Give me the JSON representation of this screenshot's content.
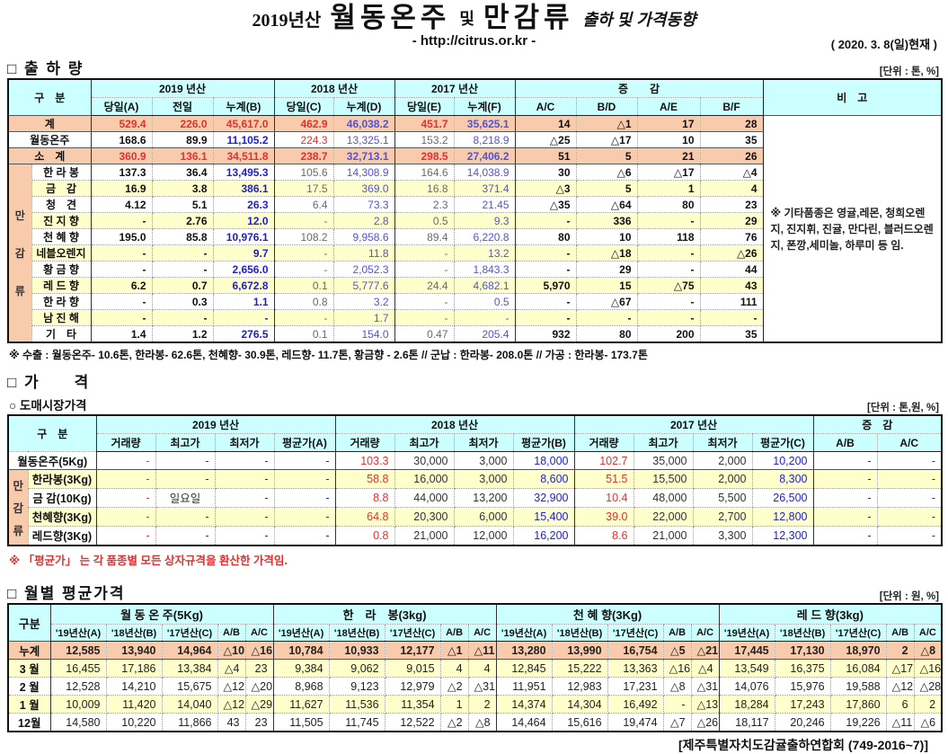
{
  "title": {
    "year_label": "2019년산",
    "main_left": "월동온주",
    "main_mid": "및",
    "main_right": "만감류",
    "suffix": "출하 및 가격동향",
    "url": "- http://citrus.or.kr -",
    "date": "( 2020. 3. 8(일)현재 )"
  },
  "shipment": {
    "section_title": "□ 출 하 량",
    "unit": "[단위 : 톤, %]",
    "corner_label": "구　분",
    "remark_label": "비　고",
    "groups": [
      {
        "label": "2019 년산",
        "cols": [
          "당일(A)",
          "전일",
          "누계(B)"
        ]
      },
      {
        "label": "2018 년산",
        "cols": [
          "당일(C)",
          "누계(D)"
        ]
      },
      {
        "label": "2017 년산",
        "cols": [
          "당일(E)",
          "누계(F)"
        ]
      },
      {
        "label": "증　　감",
        "cols": [
          "A/C",
          "B/D",
          "A/E",
          "B/F"
        ]
      }
    ],
    "group_label": [
      "만",
      "감",
      "류"
    ],
    "rows": [
      {
        "name": "계",
        "type": "grand",
        "cells": [
          "529.4",
          "226.0",
          "45,617.0",
          "462.9",
          "46,038.2",
          "451.7",
          "35,625.1",
          "14",
          "△1",
          "17",
          "28"
        ]
      },
      {
        "name": "월동온주",
        "type": "main",
        "cells": [
          "168.6",
          "89.9",
          "11,105.2",
          "224.3",
          "13,325.1",
          "153.2",
          "8,218.9",
          "△25",
          "△17",
          "10",
          "35"
        ]
      },
      {
        "name": "소　계",
        "type": "sub",
        "cells": [
          "360.9",
          "136.1",
          "34,511.8",
          "238.7",
          "32,713.1",
          "298.5",
          "27,406.2",
          "51",
          "5",
          "21",
          "26"
        ]
      },
      {
        "name": "한 라 봉",
        "type": "item",
        "cells": [
          "137.3",
          "36.4",
          "13,495.3",
          "105.6",
          "14,308.9",
          "164.6",
          "14,038.9",
          "30",
          "△6",
          "△17",
          "△4"
        ]
      },
      {
        "name": "금　감",
        "type": "item",
        "cells": [
          "16.9",
          "3.8",
          "386.1",
          "17.5",
          "369.0",
          "16.8",
          "371.4",
          "△3",
          "5",
          "1",
          "4"
        ]
      },
      {
        "name": "청　견",
        "type": "item",
        "cells": [
          "4.12",
          "5.1",
          "26.3",
          "6.4",
          "73.3",
          "2.3",
          "21.45",
          "△35",
          "△64",
          "80",
          "23"
        ]
      },
      {
        "name": "진 지 향",
        "type": "item",
        "cells": [
          "-",
          "2.76",
          "12.0",
          "-",
          "2.8",
          "0.5",
          "9.3",
          "-",
          "336",
          "-",
          "29"
        ]
      },
      {
        "name": "천 혜 향",
        "type": "item",
        "cells": [
          "195.0",
          "85.8",
          "10,976.1",
          "108.2",
          "9,958.6",
          "89.4",
          "6,220.8",
          "80",
          "10",
          "118",
          "76"
        ]
      },
      {
        "name": "네블오렌지",
        "type": "item",
        "cells": [
          "-",
          "-",
          "9.7",
          "-",
          "11.8",
          "-",
          "13.2",
          "-",
          "△18",
          "-",
          "△26"
        ]
      },
      {
        "name": "황 금 향",
        "type": "item",
        "cells": [
          "-",
          "-",
          "2,656.0",
          "-",
          "2,052.3",
          "-",
          "1,843.3",
          "-",
          "29",
          "-",
          "44"
        ]
      },
      {
        "name": "레 드 향",
        "type": "item",
        "cells": [
          "6.2",
          "0.7",
          "6,672.8",
          "0.1",
          "5,777.6",
          "24.4",
          "4,682.1",
          "5,970",
          "15",
          "△75",
          "43"
        ]
      },
      {
        "name": "한 라 향",
        "type": "item",
        "cells": [
          "-",
          "0.3",
          "1.1",
          "0.8",
          "3.2",
          "-",
          "0.5",
          "-",
          "△67",
          "-",
          "111"
        ]
      },
      {
        "name": "남 진 해",
        "type": "item",
        "cells": [
          "-",
          "-",
          "-",
          "-",
          "1.7",
          "-",
          "-",
          "-",
          "-",
          "-",
          "-"
        ]
      },
      {
        "name": "기　타",
        "type": "item",
        "cells": [
          "1.4",
          "1.2",
          "276.5",
          "0.1",
          "154.0",
          "0.47",
          "205.4",
          "932",
          "80",
          "200",
          "35"
        ]
      }
    ],
    "remark": "※ 기타품종은 영귤,레몬, 청희오렌지, 진지휘, 진귤, 만다린, 블러드오렌지, 폰깡,세미놀, 하루미 등 임.",
    "footnote": "※ 수출 : 월동온주- 10.6톤, 한라봉- 62.6톤, 천혜향- 30.9톤, 레드향- 11.7톤, 황금향 - 2.6톤 // 군납 : 한라봉- 208.0톤 // 가공 : 한라봉- 173.7톤"
  },
  "price": {
    "section_title": "□ 가　　격",
    "subsection_title": "○ 도매시장가격",
    "unit": "[단위 : 톤,원, %]",
    "corner_label": "구　분",
    "groups": [
      {
        "label": "2019 년산",
        "cols": [
          "거래량",
          "최고가",
          "최저가",
          "평균가(A)"
        ]
      },
      {
        "label": "2018 년산",
        "cols": [
          "거래량",
          "최고가",
          "최저가",
          "평균가(B)"
        ]
      },
      {
        "label": "2017 년산",
        "cols": [
          "거래량",
          "최고가",
          "최저가",
          "평균가(C)"
        ]
      },
      {
        "label": "증　감",
        "cols": [
          "A/B",
          "A/C"
        ]
      }
    ],
    "group_label": [
      "만",
      "감",
      "류"
    ],
    "rows": [
      {
        "name": "월동온주(5Kg)",
        "type": "main",
        "cells": [
          "-",
          "-",
          "-",
          "-",
          "103.3",
          "30,000",
          "3,000",
          "18,000",
          "102.7",
          "35,000",
          "2,000",
          "10,200",
          "-",
          "-"
        ]
      },
      {
        "name": "한라봉(3Kg)",
        "type": "item",
        "cells": [
          "-",
          "-",
          "-",
          "-",
          "58.8",
          "16,000",
          "3,000",
          "8,600",
          "51.5",
          "15,500",
          "2,000",
          "8,300",
          "-",
          "-"
        ]
      },
      {
        "name": "금 감(10Kg)",
        "type": "item",
        "cells": [
          "-",
          "일요일",
          "-",
          "-",
          "8.8",
          "44,000",
          "13,200",
          "32,900",
          "10.4",
          "48,000",
          "5,500",
          "26,500",
          "-",
          "-"
        ]
      },
      {
        "name": "천혜향(3Kg)",
        "type": "item",
        "cells": [
          "-",
          "-",
          "-",
          "-",
          "64.8",
          "20,300",
          "6,000",
          "15,400",
          "39.0",
          "22,000",
          "2,700",
          "12,800",
          "-",
          "-"
        ]
      },
      {
        "name": "레드향(3Kg)",
        "type": "item",
        "cells": [
          "-",
          "-",
          "-",
          "-",
          "0.8",
          "21,000",
          "12,000",
          "16,200",
          "8.6",
          "21,000",
          "3,300",
          "12,300",
          "-",
          "-"
        ]
      }
    ],
    "footnote": "※ 「평균가」 는 각 품종별 모든 상자규격을 환산한 가격임."
  },
  "monthly": {
    "section_title": "□ 월별 평균가격",
    "unit": "[단위 : 원, %]",
    "corner_label": "구분",
    "groups": [
      {
        "label": "월 동 온 주(5Kg)",
        "cols": [
          "'19년산(A)",
          "'18년산(B)",
          "'17년산(C)",
          "A/B",
          "A/C"
        ]
      },
      {
        "label": "한　라　봉(3kg)",
        "cols": [
          "'19년산(A)",
          "'18년산(B)",
          "'17년산(C)",
          "A/B",
          "A/C"
        ]
      },
      {
        "label": "천 혜 향(3Kg)",
        "cols": [
          "'19년산(A)",
          "'18년산(B)",
          "'17년산(C)",
          "A/B",
          "A/C"
        ]
      },
      {
        "label": "레 드 향(3kg)",
        "cols": [
          "'19년산(A)",
          "'18년산(B)",
          "'17년산(C)",
          "A/B",
          "A/C"
        ]
      }
    ],
    "rows": [
      {
        "name": "누계",
        "type": "total",
        "cells": [
          "12,585",
          "13,940",
          "14,964",
          "△10",
          "△16",
          "10,784",
          "10,933",
          "12,177",
          "△1",
          "△11",
          "13,280",
          "13,990",
          "16,754",
          "△5",
          "△21",
          "17,445",
          "17,130",
          "18,970",
          "2",
          "△8"
        ]
      },
      {
        "name": "3 월",
        "type": "item",
        "cells": [
          "16,455",
          "17,186",
          "13,384",
          "△4",
          "23",
          "9,384",
          "9,062",
          "9,015",
          "4",
          "4",
          "12,845",
          "15,222",
          "13,363",
          "△16",
          "△4",
          "13,549",
          "16,375",
          "16,084",
          "△17",
          "△16"
        ]
      },
      {
        "name": "2 월",
        "type": "item",
        "cells": [
          "12,528",
          "14,210",
          "15,675",
          "△12",
          "△20",
          "8,968",
          "9,123",
          "12,979",
          "△2",
          "△31",
          "11,951",
          "12,983",
          "17,231",
          "△8",
          "△31",
          "14,076",
          "15,976",
          "19,588",
          "△12",
          "△28"
        ]
      },
      {
        "name": "1 월",
        "type": "item",
        "cells": [
          "10,009",
          "11,420",
          "14,040",
          "△12",
          "△29",
          "11,627",
          "11,536",
          "11,354",
          "1",
          "2",
          "14,374",
          "14,304",
          "16,492",
          "-",
          "△13",
          "18,284",
          "17,243",
          "17,860",
          "6",
          "2"
        ]
      },
      {
        "name": "12월",
        "type": "item",
        "cells": [
          "14,580",
          "10,220",
          "11,866",
          "43",
          "23",
          "11,505",
          "11,745",
          "12,522",
          "△2",
          "△8",
          "14,464",
          "15,616",
          "19,474",
          "△7",
          "△26",
          "18,117",
          "20,246",
          "19,226",
          "△11",
          "△6"
        ]
      }
    ]
  },
  "footer": "[제주특별자치도감귤출하연합회 (749-2016~7)]",
  "colors": {
    "header_bg": "#CCFFFF",
    "total_row_bg": "#F8CBAD",
    "alt_row_bg": "#FFFFCC",
    "cumulative_text": "#1E1ECF",
    "highlight_text": "#E03232"
  }
}
